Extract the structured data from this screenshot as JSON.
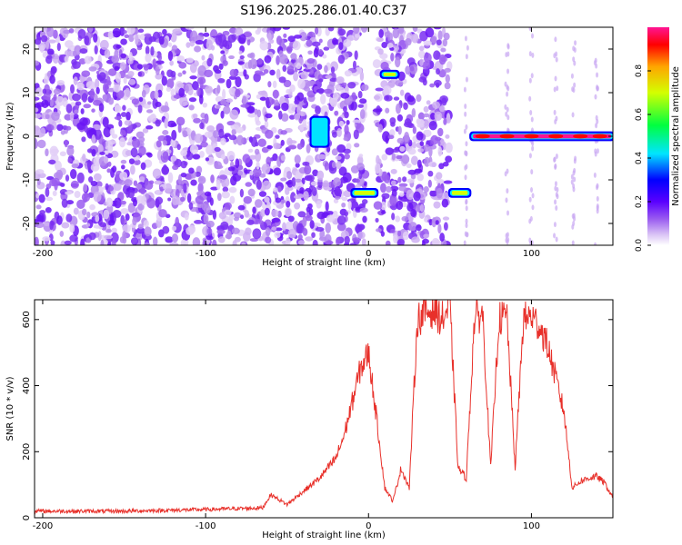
{
  "title": "S196.2025.286.01.40.C37",
  "colorbar": {
    "label": "Normalized spectral amplitude",
    "ticks": [
      0.0,
      0.2,
      0.4,
      0.6,
      0.8
    ],
    "tick_labels": [
      "0.0",
      "0.2",
      "0.4",
      "0.6",
      "0.8"
    ]
  },
  "chart_data": [
    {
      "type": "heatmap",
      "xlabel": "Height of straight line (km)",
      "ylabel": "Frequency (Hz)",
      "xlim": [
        -205,
        150
      ],
      "ylim": [
        -25,
        25
      ],
      "x_ticks": [
        -200,
        -100,
        0,
        100
      ],
      "x_tick_labels": [
        "-200",
        "-100",
        "0",
        "100"
      ],
      "y_ticks": [
        -20,
        -10,
        0,
        10,
        20
      ],
      "y_tick_labels": [
        "-20",
        "-10",
        "0",
        "10",
        "20"
      ],
      "colormap": "rainbow (violet-blue-cyan-green-yellow-red)",
      "features": [
        {
          "x": [
            -35,
            -25
          ],
          "y": [
            -2,
            4
          ],
          "amplitude": 0.35
        },
        {
          "x": [
            -10,
            5
          ],
          "y": [
            -13.5,
            -12.5
          ],
          "amplitude": 0.7
        },
        {
          "x": [
            8,
            18
          ],
          "y": [
            13.8,
            14.6
          ],
          "amplitude": 0.7
        },
        {
          "x": [
            50,
            62
          ],
          "y": [
            -13.5,
            -12.5
          ],
          "amplitude": 0.7
        },
        {
          "x": [
            63,
            150
          ],
          "y": [
            -0.5,
            0.5
          ],
          "amplitude": 0.95
        }
      ]
    },
    {
      "type": "line",
      "xlabel": "Height of straight line (km)",
      "ylabel": "SNR (10 * v/v)",
      "xlim": [
        -205,
        150
      ],
      "ylim": [
        0,
        660
      ],
      "x_ticks": [
        -200,
        -100,
        0,
        100
      ],
      "x_tick_labels": [
        "-200",
        "-100",
        "0",
        "100"
      ],
      "y_ticks": [
        0,
        200,
        400,
        600
      ],
      "y_tick_labels": [
        "0",
        "200",
        "400",
        "600"
      ],
      "color": "#e8302a",
      "x": [
        -205,
        -150,
        -100,
        -65,
        -60,
        -50,
        -40,
        -30,
        -20,
        -15,
        -10,
        -5,
        0,
        5,
        10,
        15,
        20,
        25,
        30,
        35,
        40,
        45,
        50,
        55,
        60,
        65,
        70,
        75,
        80,
        85,
        90,
        95,
        100,
        105,
        110,
        115,
        120,
        125,
        130,
        135,
        140,
        145,
        150
      ],
      "y": [
        20,
        20,
        25,
        30,
        70,
        40,
        80,
        120,
        180,
        250,
        350,
        450,
        500,
        300,
        90,
        50,
        150,
        90,
        600,
        620,
        630,
        600,
        640,
        150,
        120,
        600,
        620,
        150,
        600,
        610,
        150,
        600,
        610,
        580,
        520,
        420,
        320,
        90,
        110,
        120,
        125,
        105,
        60
      ]
    }
  ]
}
